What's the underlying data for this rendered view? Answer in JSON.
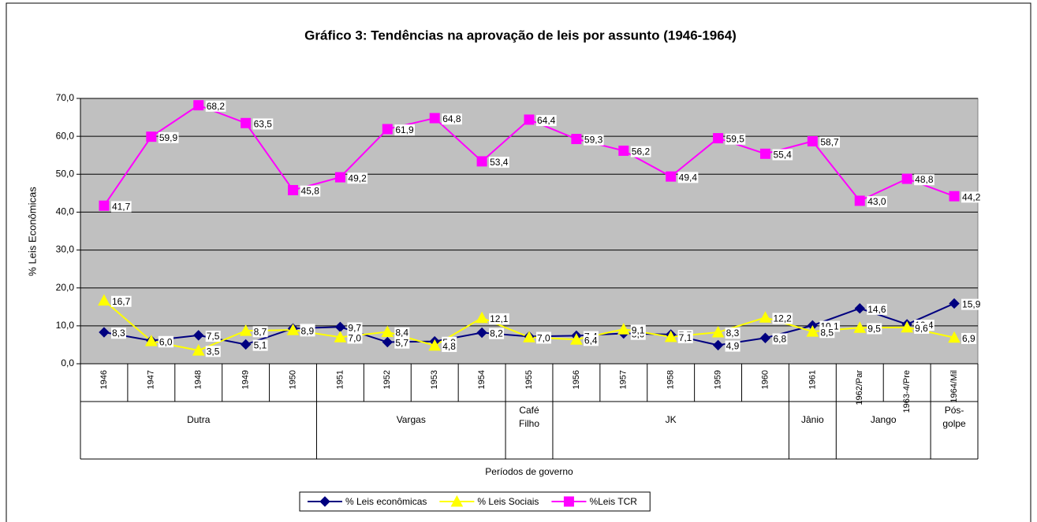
{
  "chart_data": {
    "type": "line",
    "title": "Gráfico 3: Tendências na aprovação de leis por assunto (1946-1964)",
    "y_label": "% Leis Econômicas",
    "x_label": "Períodos de governo",
    "categories": [
      "1946",
      "1947",
      "1948",
      "1949",
      "1950",
      "1951",
      "1952",
      "1953",
      "1954",
      "1955",
      "1956",
      "1957",
      "1958",
      "1959",
      "1960",
      "1961",
      "1962/Par",
      "1963-4/Pre",
      "1964/Mil"
    ],
    "groups": [
      {
        "name": "Dutra",
        "span": 5
      },
      {
        "name": "Vargas",
        "span": 4
      },
      {
        "name": "Café Filho",
        "span": 1
      },
      {
        "name": "JK",
        "span": 5
      },
      {
        "name": "Jânio",
        "span": 1
      },
      {
        "name": "Jango",
        "span": 2
      },
      {
        "name": "Pós-golpe",
        "span": 1
      }
    ],
    "series": [
      {
        "name": "% Leis econômicas",
        "color": "#000080",
        "marker": "diamond",
        "values": [
          8.3,
          6.1,
          7.5,
          5.1,
          9.3,
          9.7,
          5.7,
          5.9,
          8.2,
          7.2,
          7.4,
          8.0,
          7.7,
          4.9,
          6.8,
          10.1,
          14.6,
          10.4,
          15.9
        ],
        "value_labels": [
          "8,3",
          "6,1",
          "7,5",
          "5,1",
          "9,3",
          "9,7",
          "5,7",
          "5,9",
          "8,2",
          "7,2",
          "7,4",
          "8,0",
          "7,7",
          "4,9",
          "6,8",
          "10,1",
          "14,6",
          "10,4",
          "15,9"
        ]
      },
      {
        "name": "% Leis Sociais",
        "color": "#ffff00",
        "marker": "triangle",
        "values": [
          16.7,
          6.0,
          3.5,
          8.7,
          8.9,
          7.0,
          8.4,
          4.8,
          12.1,
          7.0,
          6.4,
          9.1,
          7.1,
          8.3,
          12.2,
          8.5,
          9.5,
          9.6,
          6.9
        ],
        "value_labels": [
          "16,7",
          "6,0",
          "3,5",
          "8,7",
          "8,9",
          "7,0",
          "8,4",
          "4,8",
          "12,1",
          "7,0",
          "6,4",
          "9,1",
          "7,1",
          "8,3",
          "12,2",
          "8,5",
          "9,5",
          "9,6",
          "6,9"
        ]
      },
      {
        "name": "%Leis TCR",
        "color": "#ff00ff",
        "marker": "square",
        "values": [
          41.7,
          59.9,
          68.2,
          63.5,
          45.8,
          49.2,
          61.9,
          64.8,
          53.4,
          64.4,
          59.3,
          56.2,
          49.4,
          59.5,
          55.4,
          58.7,
          43.0,
          48.8,
          44.2
        ],
        "value_labels": [
          "41,7",
          "59,9",
          "68,2",
          "63,5",
          "45,8",
          "49,2",
          "61,9",
          "64,8",
          "53,4",
          "64,4",
          "59,3",
          "56,2",
          "49,4",
          "59,5",
          "55,4",
          "58,7",
          "43,0",
          "48,8",
          "44,2"
        ]
      }
    ],
    "ylim": [
      0,
      70
    ],
    "yticks": [
      {
        "value": 0,
        "label": "0,0"
      },
      {
        "value": 10,
        "label": "10,0"
      },
      {
        "value": 20,
        "label": "20,0"
      },
      {
        "value": 30,
        "label": "30,0"
      },
      {
        "value": 40,
        "label": "40,0"
      },
      {
        "value": 50,
        "label": "50,0"
      },
      {
        "value": 60,
        "label": "60,0"
      },
      {
        "value": 70,
        "label": "70,0"
      }
    ],
    "grid": true,
    "legend": "bottom"
  }
}
